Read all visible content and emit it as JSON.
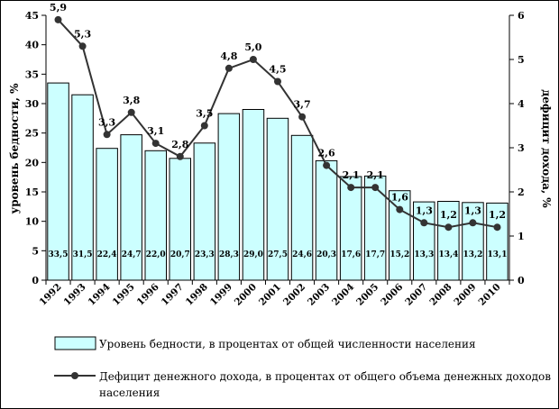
{
  "chart_data": {
    "type": "bar",
    "categories": [
      "1992",
      "1993",
      "1994",
      "1995",
      "1996",
      "1997",
      "1998",
      "1999",
      "2000",
      "2001",
      "2002",
      "2003",
      "2004",
      "2005",
      "2006",
      "2007",
      "2008",
      "2009",
      "2010"
    ],
    "series": [
      {
        "name": "Уровень бедности, в процентах от общей численности населения",
        "type": "bar",
        "axis": "left",
        "values": [
          33.5,
          31.5,
          22.4,
          24.7,
          22.0,
          20.7,
          23.3,
          28.3,
          29.0,
          27.5,
          24.6,
          20.3,
          17.6,
          17.7,
          15.2,
          13.3,
          13.4,
          13.2,
          13.1
        ],
        "labels": [
          "33,5",
          "31,5",
          "22,4",
          "24,7",
          "22,0",
          "20,7",
          "23,3",
          "28,3",
          "29,0",
          "27,5",
          "24,6",
          "20,3",
          "17,6",
          "17,7",
          "15,2",
          "13,3",
          "13,4",
          "13,2",
          "13,1"
        ],
        "color": "#ccffff"
      },
      {
        "name": "Дефицит денежного дохода, в процентах от общего объема денежных доходов населения",
        "type": "line",
        "axis": "right",
        "values": [
          5.9,
          5.3,
          3.3,
          3.8,
          3.1,
          2.8,
          3.5,
          4.8,
          5.0,
          4.5,
          3.7,
          2.6,
          2.1,
          2.1,
          1.6,
          1.3,
          1.2,
          1.3,
          1.2
        ],
        "labels": [
          "5,9",
          "5,3",
          "3,3",
          "3,8",
          "3,1",
          "2,8",
          "3,5",
          "4,8",
          "5,0",
          "4,5",
          "3,7",
          "2,6",
          "2,1",
          "2,1",
          "1,6",
          "1,3",
          "1,2",
          "1,3",
          "1,2"
        ],
        "color": "#333333"
      }
    ],
    "ylabel": "уровень бедности, %",
    "y2label": "дефицит дохода, %",
    "ylim": [
      0,
      45
    ],
    "y2lim": [
      0,
      6
    ],
    "yticks": [
      "0",
      "5",
      "10",
      "15",
      "20",
      "25",
      "30",
      "35",
      "40",
      "45"
    ],
    "y2ticks": [
      "0",
      "1",
      "2",
      "3",
      "4",
      "5",
      "6"
    ],
    "legend_position": "bottom",
    "grid": false
  },
  "legend": {
    "bar_label": "Уровень бедности, в процентах от общей численности населения",
    "line_label_1": "Дефицит денежного дохода, в процентах от общего объема денежных доходов",
    "line_label_2": "населения"
  }
}
